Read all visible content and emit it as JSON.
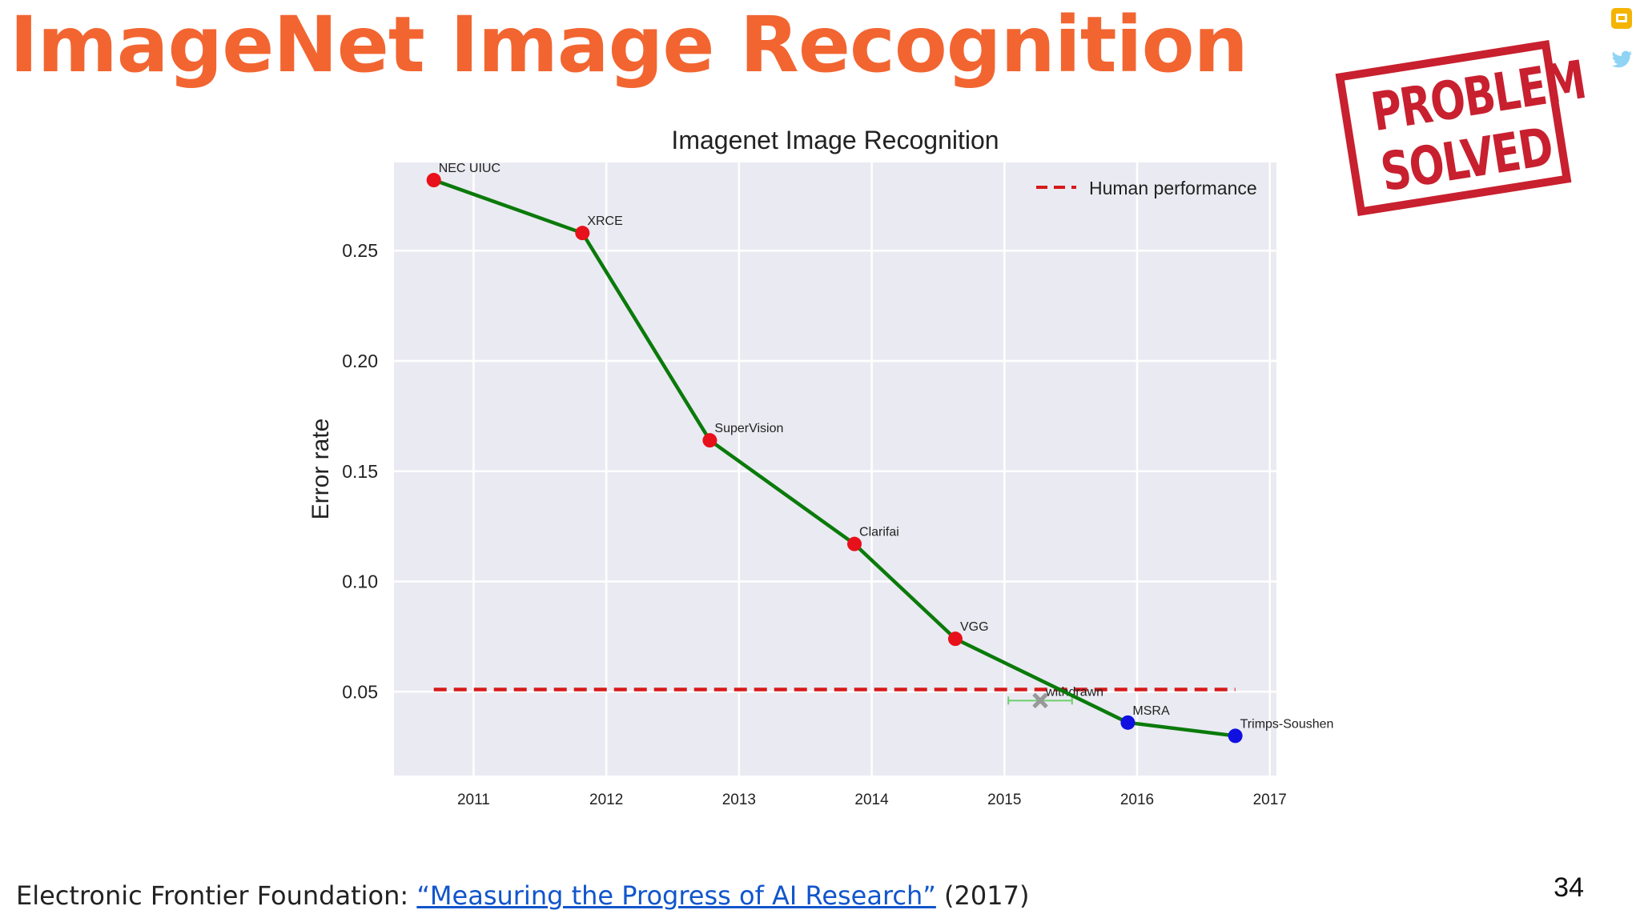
{
  "slide": {
    "title": "ImageNet Image Recognition",
    "stamp_line1": "PROBLEM",
    "stamp_line2": "SOLVED",
    "footer_source": "Electronic Frontier Foundation: ",
    "footer_link": "“Measuring the Progress of AI Research”",
    "footer_year": " (2017)",
    "page_number": "34"
  },
  "colors": {
    "title": "#f26531",
    "stamp": "#c8202f",
    "plot_bg": "#eaeaf2",
    "line": "#0a7a0a",
    "point_red": "#e8101a",
    "point_blue": "#1010e0",
    "human": "#d61a1a",
    "withdrawn": "#999999",
    "link": "#1155cc"
  },
  "icons": [
    "slides-icon",
    "twitter-icon"
  ],
  "chart_data": {
    "type": "line",
    "title": "Imagenet Image Recognition",
    "xlabel": "",
    "ylabel": "Error rate",
    "xlim": [
      2010.4,
      2017.05
    ],
    "ylim": [
      0.012,
      0.29
    ],
    "xticks": [
      2011,
      2012,
      2013,
      2014,
      2015,
      2016,
      2017
    ],
    "yticks": [
      0.05,
      0.1,
      0.15,
      0.2,
      0.25
    ],
    "ytick_labels": [
      "0.05",
      "0.10",
      "0.15",
      "0.20",
      "0.25"
    ],
    "grid": true,
    "legend": "top-right",
    "series": [
      {
        "points": [
          {
            "x": 2010.7,
            "y": 0.282,
            "label": "NEC UIUC",
            "color": "red"
          },
          {
            "x": 2011.82,
            "y": 0.258,
            "label": "XRCE",
            "color": "red"
          },
          {
            "x": 2012.78,
            "y": 0.164,
            "label": "SuperVision",
            "color": "red"
          },
          {
            "x": 2013.87,
            "y": 0.117,
            "label": "Clarifai",
            "color": "red"
          },
          {
            "x": 2014.63,
            "y": 0.074,
            "label": "VGG",
            "color": "red"
          },
          {
            "x": 2015.93,
            "y": 0.036,
            "label": "MSRA",
            "color": "blue"
          },
          {
            "x": 2016.74,
            "y": 0.03,
            "label": "Trimps-Soushen",
            "color": "blue"
          }
        ]
      },
      {
        "name": "Human performance",
        "style": "dashed",
        "x": [
          2010.7,
          2016.74
        ],
        "y": [
          0.051,
          0.051
        ]
      }
    ],
    "annotations": [
      {
        "x": 2015.27,
        "y": 0.046,
        "label": "withdrawn",
        "marker": "x",
        "xerr": [
          2015.03,
          2015.51
        ]
      }
    ]
  }
}
